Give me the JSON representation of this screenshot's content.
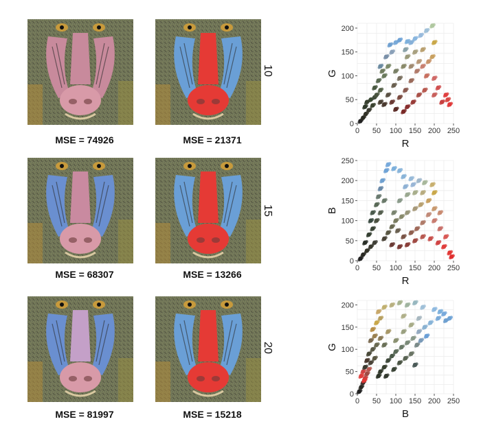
{
  "rows": [
    {
      "label": "10",
      "mse_left": "MSE = 74926",
      "mse_right": "MSE = 21371"
    },
    {
      "label": "15",
      "mse_left": "MSE = 68307",
      "mse_right": "MSE = 13266"
    },
    {
      "label": "20",
      "mse_left": "MSE = 81997",
      "mse_right": "MSE = 15218"
    }
  ],
  "image_palette": {
    "left": {
      "background": "#6b7158",
      "muzzle": "#c88a9c",
      "cheeks": "#c88a9c",
      "nose": "#d89aa8",
      "eyes": "#c79a3c"
    },
    "right": {
      "background": "#6b7158",
      "muzzle": "#e53a35",
      "cheeks": "#6a9fd6",
      "nose": "#e53a35",
      "eyes": "#c79a3c"
    },
    "left_row2": {
      "muzzle": "#c98aa0",
      "cheeks": "#6a8fd0"
    },
    "left_row3": {
      "muzzle": "#c4a0c8",
      "cheeks": "#6a8fd0"
    }
  },
  "chart_data": [
    {
      "type": "scatter",
      "xlabel": "R",
      "ylabel": "G",
      "xlim": [
        0,
        250
      ],
      "ylim": [
        0,
        210
      ],
      "xticks": [
        "0",
        "50",
        "100",
        "150",
        "200",
        "250"
      ],
      "yticks": [
        "0",
        "50",
        "100",
        "150",
        "200"
      ],
      "grid": true,
      "points": [
        [
          8,
          5,
          "#222222"
        ],
        [
          15,
          12,
          "#2a2a22"
        ],
        [
          22,
          20,
          "#333328"
        ],
        [
          30,
          28,
          "#3a3a30"
        ],
        [
          40,
          38,
          "#3b4230"
        ],
        [
          20,
          35,
          "#2f3a2a"
        ],
        [
          35,
          50,
          "#3a4a34"
        ],
        [
          45,
          55,
          "#404a3a"
        ],
        [
          50,
          60,
          "#4a5540"
        ],
        [
          60,
          70,
          "#556248"
        ],
        [
          55,
          90,
          "#5a6a52"
        ],
        [
          70,
          100,
          "#6a7a5c"
        ],
        [
          65,
          110,
          "#707c5e"
        ],
        [
          80,
          120,
          "#7c8a6a"
        ],
        [
          75,
          140,
          "#7a90a8"
        ],
        [
          90,
          150,
          "#8aa0b8"
        ],
        [
          85,
          165,
          "#6fa0d0"
        ],
        [
          100,
          170,
          "#7aaad8"
        ],
        [
          110,
          175,
          "#6fa3d6"
        ],
        [
          130,
          172,
          "#7db0dc"
        ],
        [
          150,
          178,
          "#8ab6de"
        ],
        [
          165,
          185,
          "#98badc"
        ],
        [
          180,
          195,
          "#a0c0d8"
        ],
        [
          195,
          205,
          "#b0c8a0"
        ],
        [
          200,
          170,
          "#c9a84a"
        ],
        [
          195,
          140,
          "#c8a060"
        ],
        [
          170,
          155,
          "#b9a070"
        ],
        [
          150,
          150,
          "#a8a080"
        ],
        [
          130,
          140,
          "#9a9a7a"
        ],
        [
          120,
          120,
          "#8a8a6a"
        ],
        [
          100,
          110,
          "#7a8066"
        ],
        [
          110,
          95,
          "#7a7060"
        ],
        [
          95,
          80,
          "#6a6050"
        ],
        [
          80,
          60,
          "#5a5044"
        ],
        [
          70,
          40,
          "#4a3a30"
        ],
        [
          90,
          45,
          "#6a3a34"
        ],
        [
          110,
          55,
          "#7a4a40"
        ],
        [
          125,
          70,
          "#8a5a50"
        ],
        [
          140,
          90,
          "#9a6a5a"
        ],
        [
          155,
          110,
          "#b07a6a"
        ],
        [
          170,
          120,
          "#c88070"
        ],
        [
          180,
          100,
          "#c87060"
        ],
        [
          200,
          95,
          "#d06a68"
        ],
        [
          210,
          75,
          "#d05050"
        ],
        [
          230,
          60,
          "#e04040"
        ],
        [
          240,
          40,
          "#e03838"
        ],
        [
          235,
          50,
          "#d84844"
        ],
        [
          220,
          45,
          "#c84040"
        ],
        [
          200,
          60,
          "#c8605c"
        ],
        [
          175,
          70,
          "#b85a50"
        ],
        [
          160,
          60,
          "#a85048"
        ],
        [
          145,
          45,
          "#983c38"
        ],
        [
          130,
          35,
          "#882e2e"
        ],
        [
          120,
          25,
          "#7a2a28"
        ],
        [
          100,
          30,
          "#5a2a26"
        ],
        [
          60,
          45,
          "#4a4034"
        ],
        [
          25,
          45,
          "#384030"
        ],
        [
          45,
          75,
          "#4a5a42"
        ],
        [
          140,
          120,
          "#a08a70"
        ],
        [
          160,
          130,
          "#b89878"
        ],
        [
          185,
          130,
          "#c8946a"
        ],
        [
          125,
          155,
          "#8aa2a8"
        ],
        [
          60,
          120,
          "#6a8aa0"
        ],
        [
          140,
          170,
          "#86b0d8"
        ]
      ]
    },
    {
      "type": "scatter",
      "xlabel": "R",
      "ylabel": "B",
      "xlim": [
        0,
        250
      ],
      "ylim": [
        0,
        250
      ],
      "xticks": [
        "0",
        "50",
        "100",
        "150",
        "200",
        "250"
      ],
      "yticks": [
        "0",
        "50",
        "100",
        "150",
        "200",
        "250"
      ],
      "grid": true,
      "points": [
        [
          8,
          5,
          "#222222"
        ],
        [
          15,
          15,
          "#2a2a24"
        ],
        [
          25,
          25,
          "#333328"
        ],
        [
          35,
          35,
          "#3a3a30"
        ],
        [
          45,
          45,
          "#404038"
        ],
        [
          20,
          45,
          "#2a3028"
        ],
        [
          30,
          65,
          "#354032"
        ],
        [
          40,
          80,
          "#3a4436"
        ],
        [
          50,
          100,
          "#4a5040"
        ],
        [
          60,
          120,
          "#566050"
        ],
        [
          50,
          140,
          "#5a6a58"
        ],
        [
          55,
          160,
          "#6a7a70"
        ],
        [
          60,
          180,
          "#6a8aa8"
        ],
        [
          65,
          200,
          "#6fa0d0"
        ],
        [
          75,
          225,
          "#6fa3d6"
        ],
        [
          80,
          240,
          "#78aadc"
        ],
        [
          95,
          230,
          "#7db0dc"
        ],
        [
          110,
          225,
          "#88b4da"
        ],
        [
          120,
          210,
          "#8ab4d8"
        ],
        [
          140,
          205,
          "#98bad8"
        ],
        [
          160,
          200,
          "#a0b8cc"
        ],
        [
          175,
          195,
          "#a8b89c"
        ],
        [
          195,
          190,
          "#c8b070"
        ],
        [
          200,
          170,
          "#c9a84a"
        ],
        [
          185,
          150,
          "#c8a060"
        ],
        [
          165,
          140,
          "#b8a070"
        ],
        [
          150,
          130,
          "#a89a7a"
        ],
        [
          130,
          120,
          "#98967a"
        ],
        [
          115,
          110,
          "#888a6c"
        ],
        [
          100,
          100,
          "#7a7c60"
        ],
        [
          90,
          85,
          "#6a6a52"
        ],
        [
          80,
          70,
          "#5a5844"
        ],
        [
          70,
          55,
          "#4a4438"
        ],
        [
          90,
          40,
          "#6a3a34"
        ],
        [
          110,
          35,
          "#7a3a36"
        ],
        [
          130,
          40,
          "#8a3e3a"
        ],
        [
          150,
          50,
          "#a04a44"
        ],
        [
          170,
          60,
          "#b85a52"
        ],
        [
          190,
          55,
          "#c8504c"
        ],
        [
          210,
          45,
          "#d04444"
        ],
        [
          225,
          35,
          "#e03e3c"
        ],
        [
          240,
          20,
          "#e23836"
        ],
        [
          245,
          10,
          "#e03030"
        ],
        [
          230,
          60,
          "#d85a56"
        ],
        [
          215,
          80,
          "#c8706a"
        ],
        [
          200,
          100,
          "#c87c70"
        ],
        [
          185,
          115,
          "#c08a78"
        ],
        [
          170,
          95,
          "#b07c6a"
        ],
        [
          155,
          80,
          "#a06a5a"
        ],
        [
          140,
          70,
          "#906050"
        ],
        [
          120,
          60,
          "#7a5446"
        ],
        [
          105,
          75,
          "#6a6050"
        ],
        [
          95,
          120,
          "#7a8470"
        ],
        [
          110,
          150,
          "#8a9a8a"
        ],
        [
          130,
          165,
          "#9aa890"
        ],
        [
          150,
          170,
          "#a8ae8c"
        ],
        [
          170,
          170,
          "#b8ac80"
        ],
        [
          125,
          185,
          "#90b2d4"
        ],
        [
          145,
          190,
          "#9ab6d6"
        ],
        [
          40,
          120,
          "#4a5a4c"
        ],
        [
          35,
          100,
          "#3a4a40"
        ],
        [
          70,
          150,
          "#6a7a6a"
        ],
        [
          200,
          130,
          "#c89a70"
        ],
        [
          215,
          120,
          "#c88a70"
        ]
      ]
    },
    {
      "type": "scatter",
      "xlabel": "B",
      "ylabel": "G",
      "xlim": [
        0,
        250
      ],
      "ylim": [
        0,
        210
      ],
      "xticks": [
        "0",
        "50",
        "100",
        "150",
        "200",
        "250"
      ],
      "yticks": [
        "0",
        "50",
        "100",
        "150",
        "200"
      ],
      "grid": true,
      "points": [
        [
          5,
          5,
          "#222222"
        ],
        [
          10,
          15,
          "#2a2a24"
        ],
        [
          15,
          25,
          "#3a2a28"
        ],
        [
          20,
          35,
          "#c84040"
        ],
        [
          25,
          45,
          "#a04a44"
        ],
        [
          15,
          50,
          "#d04444"
        ],
        [
          30,
          55,
          "#b85a52"
        ],
        [
          20,
          60,
          "#3a3a30"
        ],
        [
          35,
          70,
          "#4a4438"
        ],
        [
          45,
          80,
          "#5a5844"
        ],
        [
          30,
          90,
          "#4a4a3a"
        ],
        [
          40,
          100,
          "#5a5a48"
        ],
        [
          50,
          110,
          "#6a6a52"
        ],
        [
          35,
          120,
          "#7a6a50"
        ],
        [
          45,
          130,
          "#9a8050"
        ],
        [
          40,
          145,
          "#b8904a"
        ],
        [
          50,
          160,
          "#c9a84a"
        ],
        [
          60,
          170,
          "#b8a060"
        ],
        [
          55,
          185,
          "#c8a86a"
        ],
        [
          70,
          195,
          "#c0b070"
        ],
        [
          90,
          200,
          "#b8b080"
        ],
        [
          110,
          205,
          "#a8b490"
        ],
        [
          130,
          200,
          "#a0b4a0"
        ],
        [
          150,
          205,
          "#98b8c0"
        ],
        [
          170,
          195,
          "#a0c0d8"
        ],
        [
          200,
          190,
          "#90bae0"
        ],
        [
          215,
          185,
          "#7db0dc"
        ],
        [
          225,
          180,
          "#78aadc"
        ],
        [
          240,
          170,
          "#6fa3d6"
        ],
        [
          230,
          165,
          "#6fa0d0"
        ],
        [
          210,
          170,
          "#7aaad8"
        ],
        [
          190,
          160,
          "#88b4d8"
        ],
        [
          175,
          150,
          "#8ab2d2"
        ],
        [
          160,
          140,
          "#94aac0"
        ],
        [
          145,
          125,
          "#8a9a8a"
        ],
        [
          130,
          115,
          "#7a8a78"
        ],
        [
          115,
          105,
          "#6a7a68"
        ],
        [
          100,
          95,
          "#5a6a58"
        ],
        [
          90,
          85,
          "#4a5a48"
        ],
        [
          80,
          75,
          "#404a3c"
        ],
        [
          70,
          60,
          "#384030"
        ],
        [
          60,
          50,
          "#323a2c"
        ],
        [
          55,
          40,
          "#2e3428"
        ],
        [
          75,
          40,
          "#333a30"
        ],
        [
          95,
          55,
          "#3a4436"
        ],
        [
          110,
          70,
          "#4a5444"
        ],
        [
          125,
          80,
          "#5a6454"
        ],
        [
          140,
          90,
          "#6a7464"
        ],
        [
          155,
          110,
          "#7a8a88"
        ],
        [
          165,
          120,
          "#7a9ab8"
        ],
        [
          180,
          130,
          "#6a9fd6"
        ],
        [
          150,
          65,
          "#4a5a58"
        ],
        [
          100,
          120,
          "#8a9070"
        ],
        [
          80,
          140,
          "#a89868"
        ],
        [
          120,
          140,
          "#9aa080"
        ],
        [
          140,
          155,
          "#a8ac88"
        ],
        [
          60,
          125,
          "#8a7a58"
        ],
        [
          25,
          75,
          "#4a3a30"
        ],
        [
          10,
          40,
          "#e03e3c"
        ],
        [
          18,
          30,
          "#e23836"
        ],
        [
          70,
          110,
          "#6a7058"
        ],
        [
          160,
          170,
          "#a8b8c0"
        ],
        [
          120,
          175,
          "#b0b08a"
        ]
      ]
    }
  ]
}
